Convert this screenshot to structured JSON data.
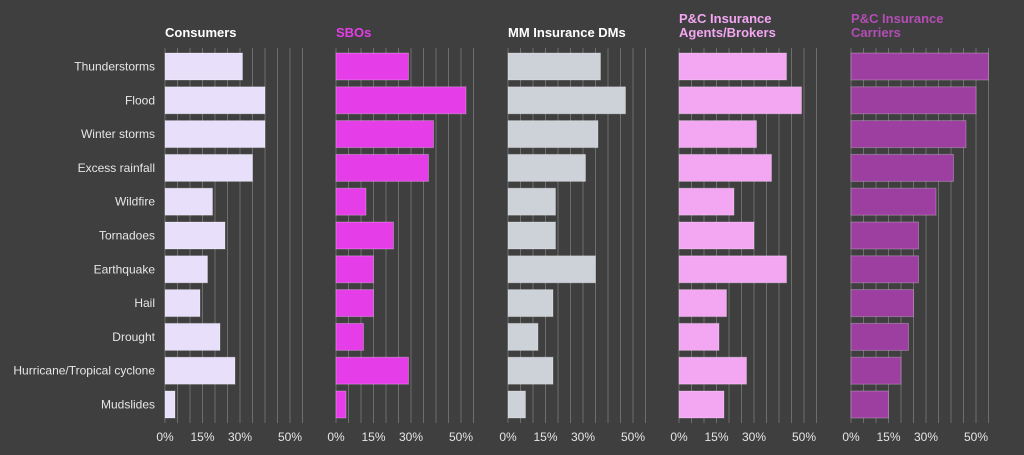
{
  "chart_data": {
    "type": "bar",
    "orientation": "horizontal",
    "categories": [
      "Thunderstorms",
      "Flood",
      "Winter storms",
      "Excess rainfall",
      "Wildfire",
      "Tornadoes",
      "Earthquake",
      "Hail",
      "Drought",
      "Hurricane/Tropical cyclone",
      "Mudslides"
    ],
    "x_ticks": [
      "0%",
      "15%",
      "30%",
      "50%"
    ],
    "xlim": [
      0,
      55
    ],
    "grid": true,
    "panels": [
      {
        "title": [
          "Consumers"
        ],
        "title_color": "#ffffff",
        "color": "#e8e0fa",
        "values": [
          31,
          40,
          40,
          35,
          19,
          24,
          17,
          14,
          22,
          28,
          4
        ]
      },
      {
        "title": [
          "SBOs"
        ],
        "title_color": "#e53ee8",
        "color": "#e53ee8",
        "values": [
          29,
          52,
          39,
          37,
          12,
          23,
          15,
          15,
          11,
          29,
          4
        ]
      },
      {
        "title": [
          "MM Insurance DMs"
        ],
        "title_color": "#ffffff",
        "color": "#cdd1d8",
        "values": [
          37,
          47,
          36,
          31,
          19,
          19,
          35,
          18,
          12,
          18,
          7
        ]
      },
      {
        "title": [
          "P&C Insurance",
          "Agents/Brokers"
        ],
        "title_color": "#f3a6f2",
        "color": "#f3a6f2",
        "values": [
          43,
          49,
          31,
          37,
          22,
          30,
          43,
          19,
          16,
          27,
          18
        ]
      },
      {
        "title": [
          "P&C Insurance",
          "Carriers"
        ],
        "title_color": "#b34db5",
        "color": "#9c3fa0",
        "values": [
          55,
          50,
          46,
          41,
          34,
          27,
          27,
          25,
          23,
          20,
          15
        ]
      }
    ]
  }
}
